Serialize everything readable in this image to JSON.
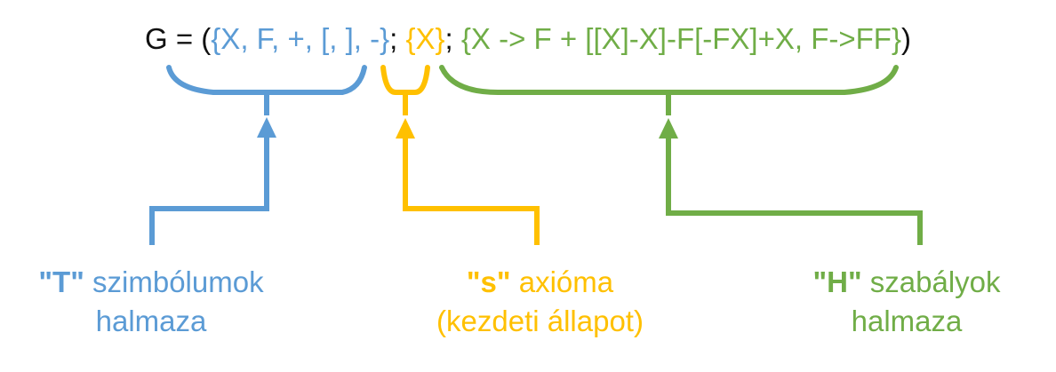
{
  "formula": {
    "prefix": "G = (",
    "terminals": "{X, F, +, [, ], -}",
    "sep1": "; ",
    "axiom": "{X}",
    "sep2": "; ",
    "rules": "{X -> F + [[X]-X]-F[-FX]+X, F->FF}",
    "suffix": ")"
  },
  "labels": {
    "terminals": {
      "key": "\"T\"",
      "line1": " szimbólumok",
      "line2": "halmaza"
    },
    "axiom": {
      "key": "\"s\"",
      "line1": " axióma",
      "line2": "(kezdeti állapot)"
    },
    "rules": {
      "key": "\"H\"",
      "line1": " szabályok",
      "line2": "halmaza"
    }
  },
  "colors": {
    "terminals": "#5b9bd5",
    "axiom": "#ffc000",
    "rules": "#70ad47",
    "text": "#111111"
  }
}
